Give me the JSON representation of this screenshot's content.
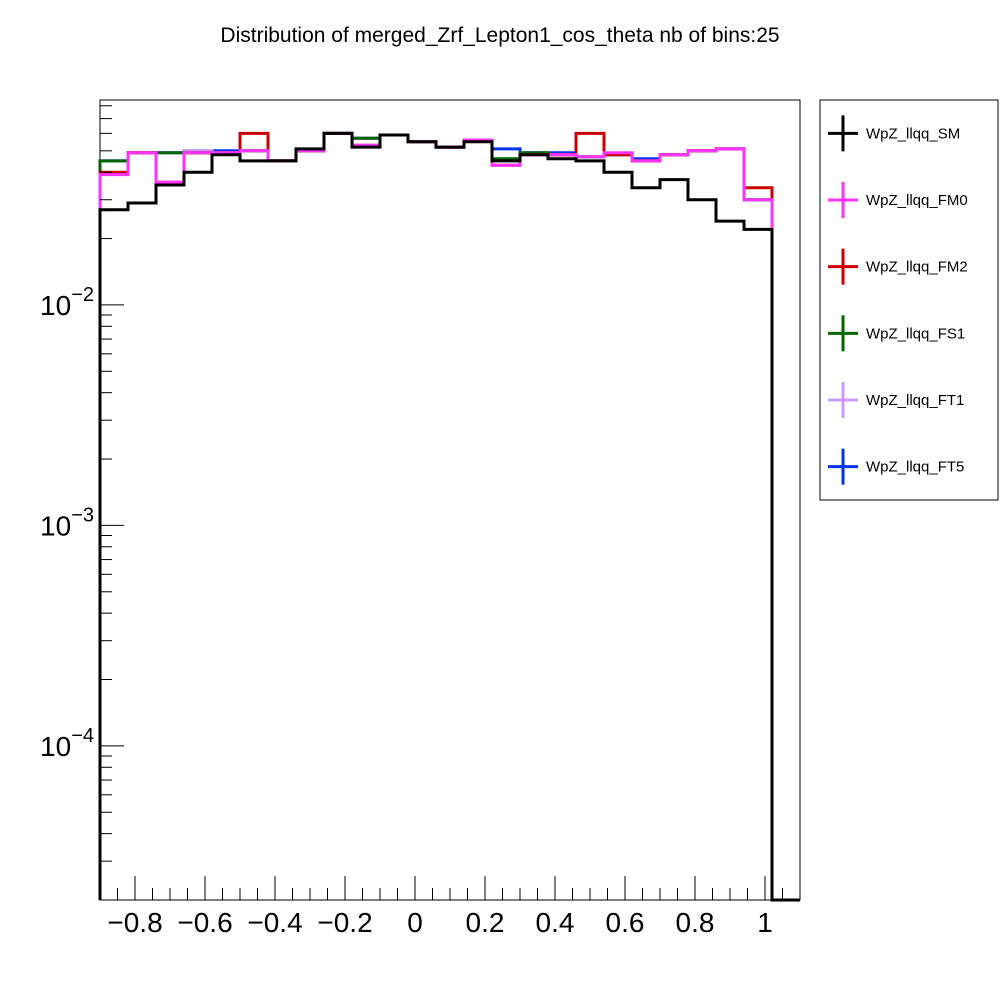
{
  "chart_data": {
    "type": "line",
    "title": "Distribution of merged_Zrf_Lepton1_cos_theta nb of bins:25",
    "xlabel": "",
    "ylabel": "",
    "xlim": [
      -0.9,
      1.1
    ],
    "ylim": [
      2e-05,
      0.085
    ],
    "yscale": "log",
    "xticks": [
      {
        "value": -0.8,
        "label": "−0.8"
      },
      {
        "value": -0.6,
        "label": "−0.6"
      },
      {
        "value": -0.4,
        "label": "−0.4"
      },
      {
        "value": -0.2,
        "label": "−0.2"
      },
      {
        "value": 0,
        "label": "0"
      },
      {
        "value": 0.2,
        "label": "0.2"
      },
      {
        "value": 0.4,
        "label": "0.4"
      },
      {
        "value": 0.6,
        "label": "0.6"
      },
      {
        "value": 0.8,
        "label": "0.8"
      },
      {
        "value": 1,
        "label": "1"
      }
    ],
    "yticks": [
      {
        "value": 0.01,
        "base": "10",
        "exp": "−2"
      },
      {
        "value": 0.001,
        "base": "10",
        "exp": "−3"
      },
      {
        "value": 0.0001,
        "base": "10",
        "exp": "−4"
      }
    ],
    "bin_edges": [
      -0.9,
      -0.82,
      -0.74,
      -0.66,
      -0.58,
      -0.5,
      -0.42,
      -0.34,
      -0.26,
      -0.18,
      -0.1,
      -0.02,
      0.06,
      0.14,
      0.22,
      0.3,
      0.38,
      0.46,
      0.54,
      0.62,
      0.7,
      0.78,
      0.86,
      0.94,
      1.02,
      1.1
    ],
    "legend_position": "right",
    "series": [
      {
        "name": "WpZ_llqq_FT5",
        "color": "#0033ee",
        "values": [
          0.045,
          0.049,
          0.049,
          0.05,
          0.05,
          0.05,
          0.045,
          0.05,
          0.06,
          0.057,
          0.059,
          0.055,
          0.052,
          0.056,
          0.051,
          0.049,
          0.049,
          0.047,
          0.048,
          0.046,
          0.048,
          0.05,
          0.051,
          0.03,
          2e-05
        ]
      },
      {
        "name": "WpZ_llqq_FT1",
        "color": "#cc99ff",
        "values": [
          0.045,
          0.049,
          0.049,
          0.05,
          0.049,
          0.05,
          0.045,
          0.05,
          0.06,
          0.057,
          0.059,
          0.055,
          0.052,
          0.056,
          0.046,
          0.049,
          0.048,
          0.047,
          0.048,
          0.045,
          0.048,
          0.05,
          0.051,
          0.03,
          2e-05
        ]
      },
      {
        "name": "WpZ_llqq_FS1",
        "color": "#006600",
        "values": [
          0.045,
          0.049,
          0.049,
          0.049,
          0.049,
          0.05,
          0.045,
          0.05,
          0.06,
          0.057,
          0.059,
          0.055,
          0.052,
          0.056,
          0.046,
          0.049,
          0.048,
          0.047,
          0.048,
          0.045,
          0.048,
          0.05,
          0.051,
          0.03,
          2e-05
        ]
      },
      {
        "name": "WpZ_llqq_FM2",
        "color": "#cc0000",
        "values": [
          0.04,
          0.049,
          0.036,
          0.049,
          0.049,
          0.06,
          0.045,
          0.05,
          0.06,
          0.053,
          0.059,
          0.055,
          0.052,
          0.056,
          0.043,
          0.048,
          0.048,
          0.06,
          0.048,
          0.045,
          0.048,
          0.05,
          0.051,
          0.034,
          2e-05
        ]
      },
      {
        "name": "WpZ_llqq_FM0",
        "color": "#ff33ff",
        "values": [
          0.039,
          0.049,
          0.036,
          0.049,
          0.049,
          0.05,
          0.045,
          0.05,
          0.06,
          0.053,
          0.059,
          0.055,
          0.052,
          0.056,
          0.043,
          0.048,
          0.048,
          0.047,
          0.049,
          0.045,
          0.048,
          0.05,
          0.051,
          0.03,
          2e-05
        ]
      },
      {
        "name": "WpZ_llqq_SM",
        "color": "#000000",
        "values": [
          0.027,
          0.029,
          0.035,
          0.04,
          0.048,
          0.045,
          0.045,
          0.051,
          0.06,
          0.052,
          0.059,
          0.055,
          0.052,
          0.055,
          0.045,
          0.048,
          0.046,
          0.045,
          0.04,
          0.034,
          0.037,
          0.03,
          0.024,
          0.022,
          2e-05
        ]
      }
    ],
    "legend": [
      "WpZ_llqq_SM",
      "WpZ_llqq_FM0",
      "WpZ_llqq_FM2",
      "WpZ_llqq_FS1",
      "WpZ_llqq_FT1",
      "WpZ_llqq_FT5"
    ]
  }
}
